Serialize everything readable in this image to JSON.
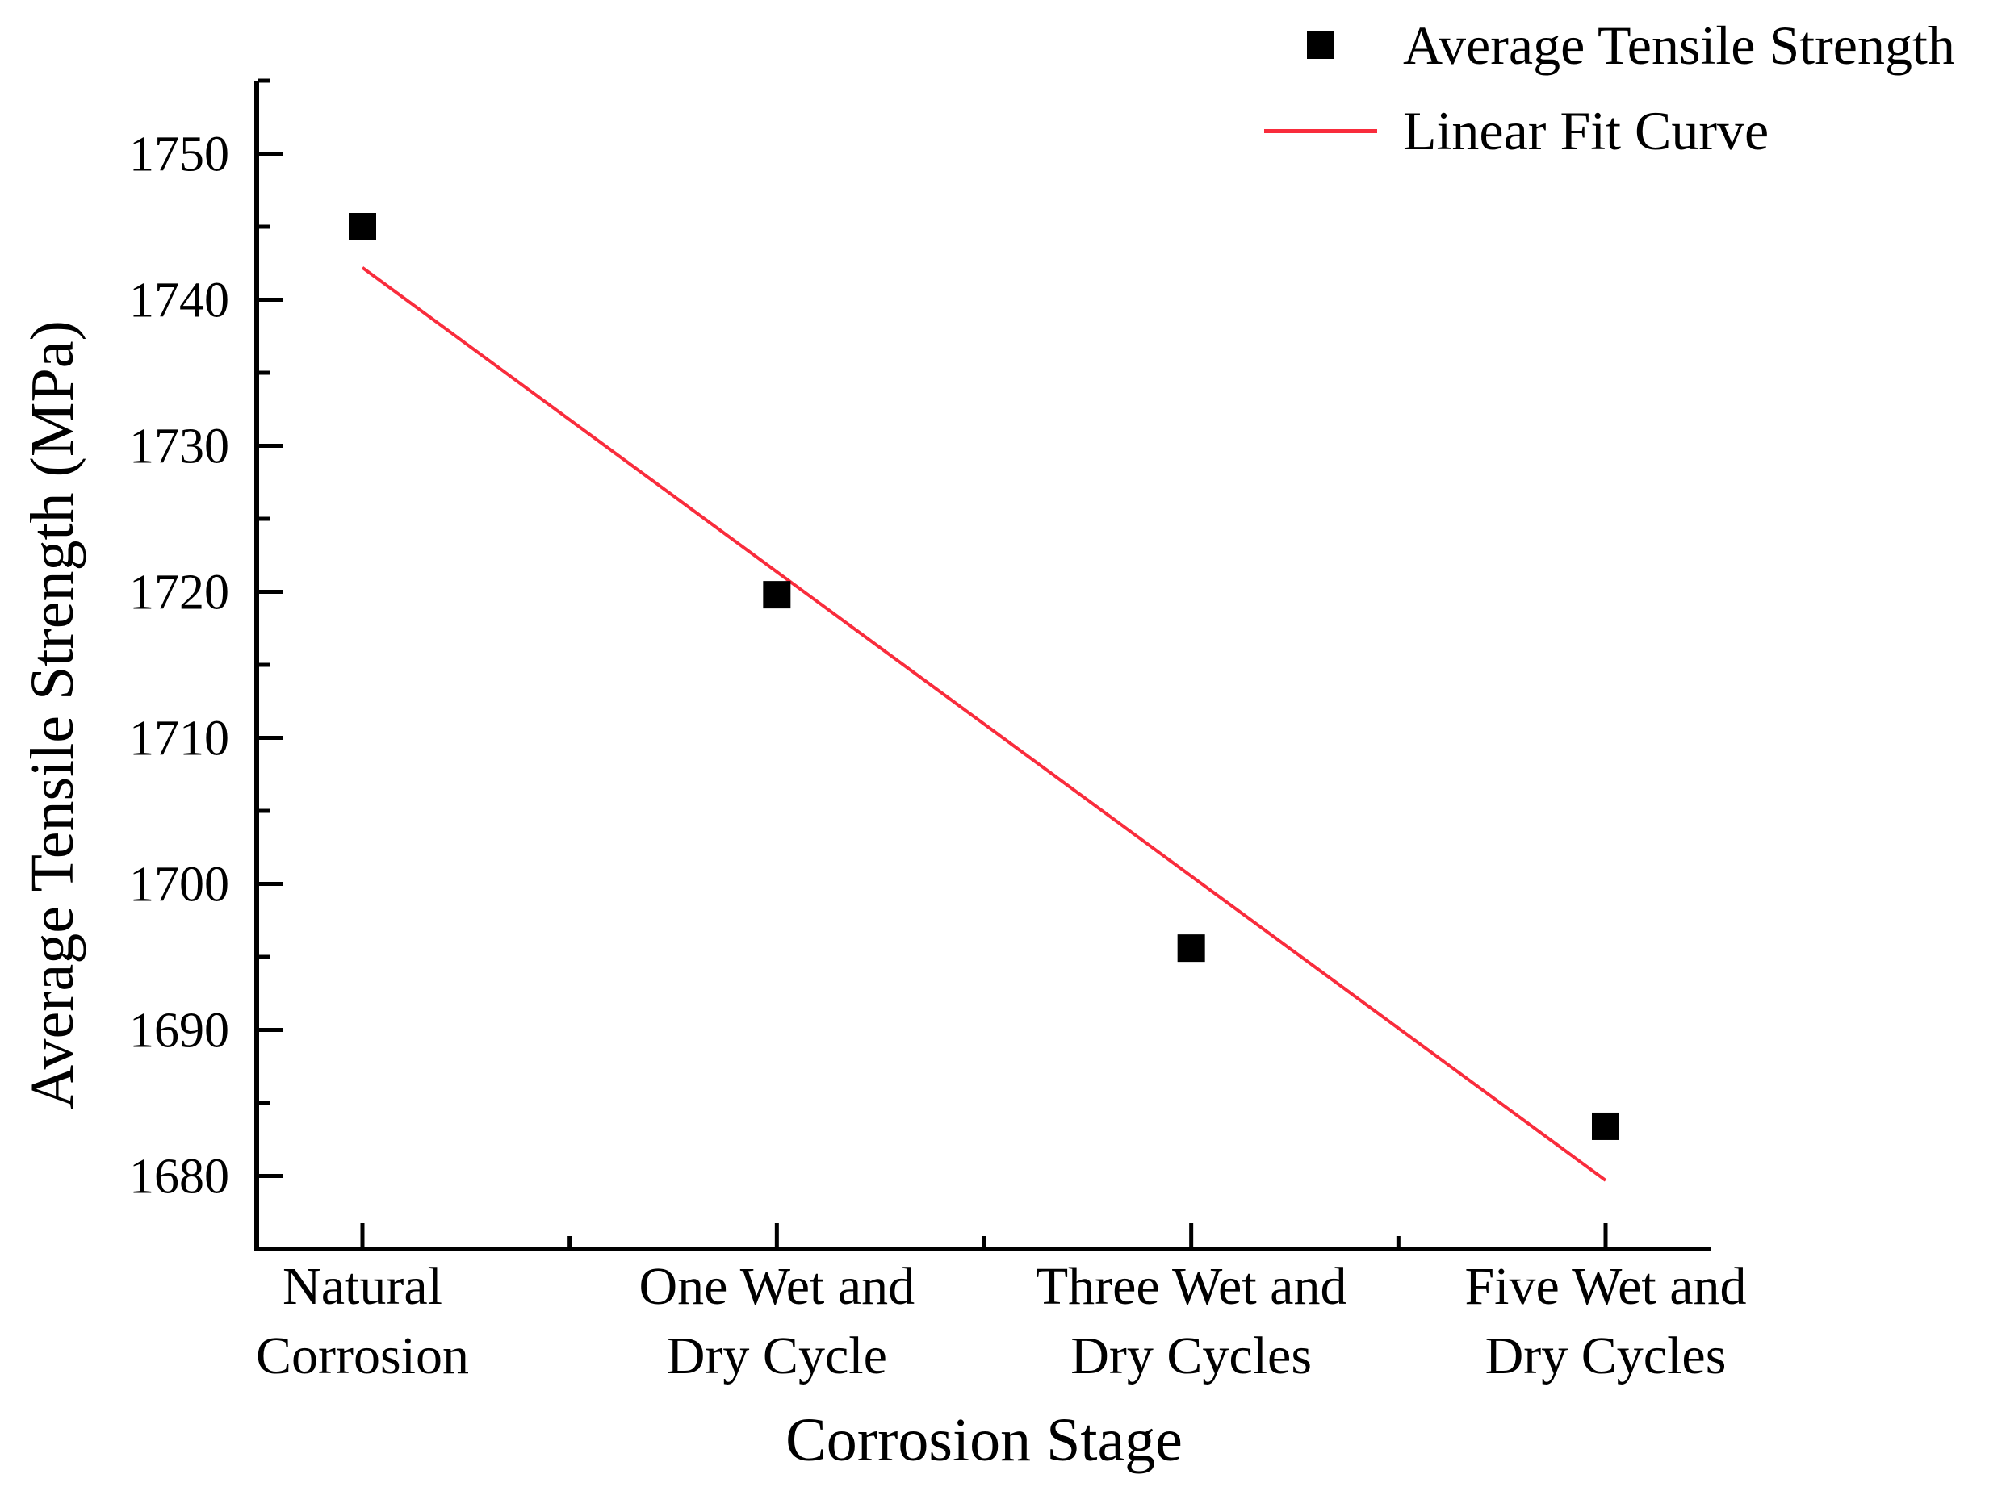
{
  "figure": {
    "background_color": "#ffffff",
    "text_color": "#000000"
  },
  "chart_data": {
    "type": "scatter",
    "title": "",
    "xlabel": "Corrosion Stage",
    "ylabel": "Average Tensile Strength (MPa)",
    "categories": [
      "Natural Corrosion",
      "One Wet and Dry Cycle",
      "Three Wet and Dry Cycles",
      "Five Wet and Dry Cycles"
    ],
    "category_label_lines": [
      [
        "Natural",
        "Corrosion"
      ],
      [
        "One Wet and",
        "Dry Cycle"
      ],
      [
        "Three Wet and",
        "Dry Cycles"
      ],
      [
        "Five Wet and",
        "Dry Cycles"
      ]
    ],
    "series": [
      {
        "name": "Average Tensile Strength",
        "type": "scatter",
        "marker": "black-square",
        "color": "#000000",
        "values": [
          1745.0,
          1719.8,
          1695.6,
          1683.4
        ]
      },
      {
        "name": "Linear Fit Curve",
        "type": "line",
        "color": "#F92C3C",
        "values": [
          1742.2,
          1721.4,
          1700.5,
          1679.7
        ]
      }
    ],
    "ylim": [
      1675,
      1755
    ],
    "yticks_major": [
      1680,
      1690,
      1700,
      1710,
      1720,
      1730,
      1740,
      1750
    ],
    "ytick_minor_interval": 5,
    "axis_color": "#000000",
    "grid": false,
    "legend_position": "top-right"
  }
}
